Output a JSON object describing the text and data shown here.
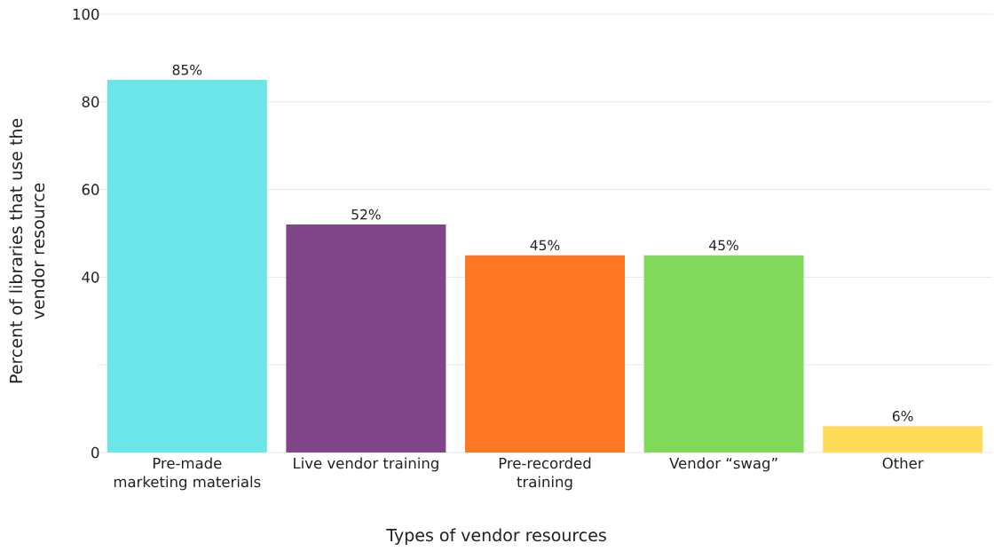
{
  "chart_data": {
    "type": "bar",
    "xlabel": "Types of vendor resources",
    "ylabel": "Percent of libraries that use the vendor resource",
    "categories": [
      "Pre-made marketing materials",
      "Live vendor training",
      "Pre-recorded training",
      "Vendor “swag”",
      "Other"
    ],
    "values": [
      85,
      52,
      45,
      45,
      6
    ],
    "colors": [
      "#6ce5e8",
      "#7e4688",
      "#ff7722",
      "#80d95a",
      "#ffdb58"
    ],
    "value_labels": [
      "85%",
      "52%",
      "45%",
      "45%",
      "6%"
    ],
    "ylim": [
      0,
      100
    ],
    "yticks": [
      0,
      {
        "value": 20,
        "label": null
      },
      40,
      60,
      80,
      100
    ],
    "grid": "y"
  }
}
